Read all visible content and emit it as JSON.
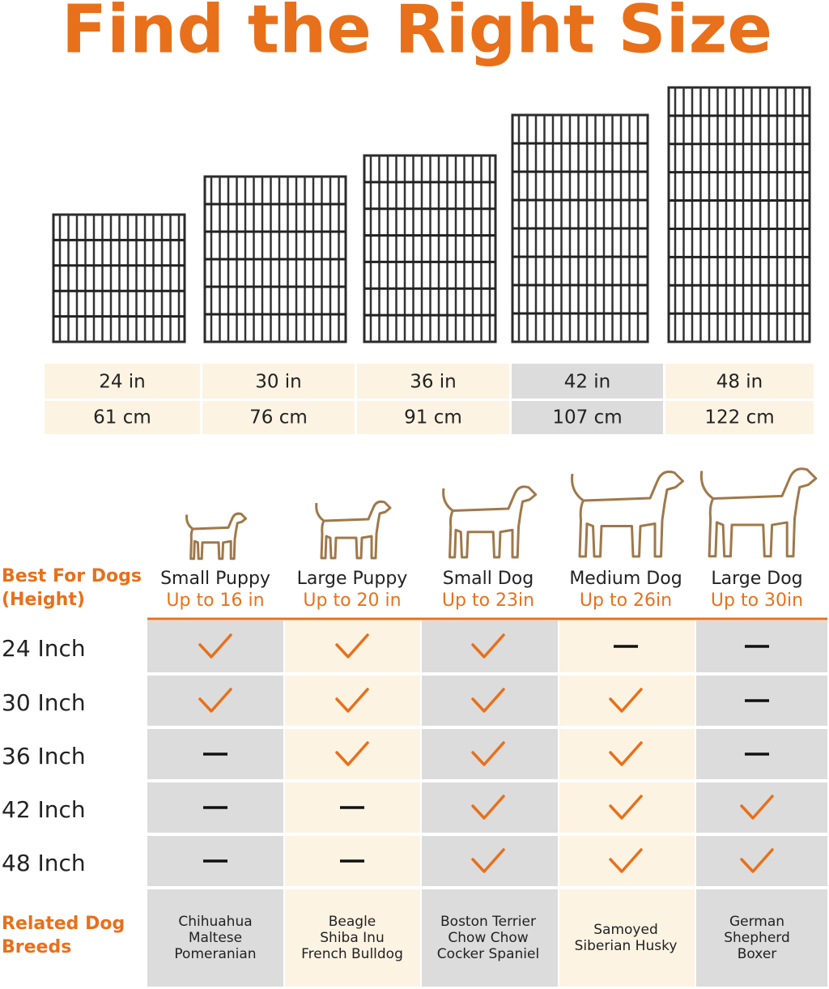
{
  "title": "Find the Right Size",
  "sizes": [
    {
      "inch": "24 in",
      "cm": "61 cm"
    },
    {
      "inch": "30 in",
      "cm": "76 cm"
    },
    {
      "inch": "36 in",
      "cm": "91 cm"
    },
    {
      "inch": "42 in",
      "cm": "107 cm"
    },
    {
      "inch": "48 in",
      "cm": "122 cm"
    }
  ],
  "fit_header": [
    "Best For Dogs",
    "(Height)"
  ],
  "dogs": [
    {
      "name": "Small Puppy",
      "height": "Up to 16 in"
    },
    {
      "name": "Large Puppy",
      "height": "Up to 20 in"
    },
    {
      "name": "Small Dog",
      "height": "Up to 23in"
    },
    {
      "name": "Medium Dog",
      "height": "Up to 26in"
    },
    {
      "name": "Large Dog",
      "height": "Up to 30in"
    }
  ],
  "rows": [
    {
      "label": "24 Inch",
      "fits": [
        true,
        true,
        true,
        false,
        false
      ]
    },
    {
      "label": "30 Inch",
      "fits": [
        true,
        true,
        true,
        true,
        false
      ]
    },
    {
      "label": "36 Inch",
      "fits": [
        false,
        true,
        true,
        true,
        false
      ]
    },
    {
      "label": "42 Inch",
      "fits": [
        false,
        false,
        true,
        true,
        true
      ]
    },
    {
      "label": "48 Inch",
      "fits": [
        false,
        false,
        true,
        true,
        true
      ]
    }
  ],
  "breeds_header": [
    "Related Dog",
    "Breeds"
  ],
  "breeds": [
    [
      "Chihuahua",
      "Maltese",
      "Pomeranian"
    ],
    [
      "Beagle",
      "Shiba Inu",
      "French Bulldog"
    ],
    [
      "Boston Terrier",
      "Chow Chow",
      "Cocker Spaniel"
    ],
    [
      "Samoyed",
      "Siberian Husky"
    ],
    [
      "German",
      "Shepherd",
      "Boxer"
    ]
  ]
}
